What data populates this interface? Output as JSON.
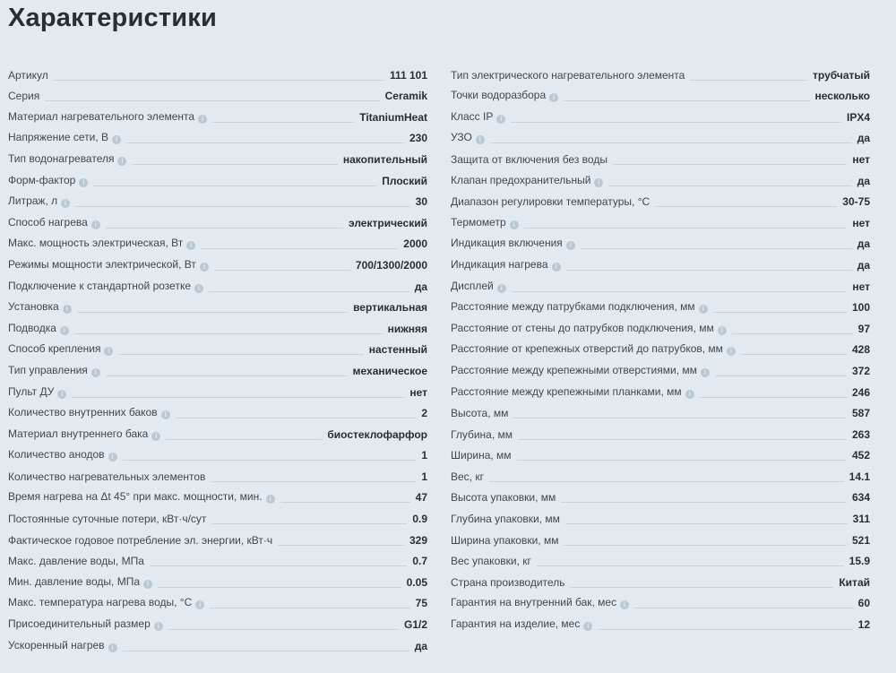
{
  "title": "Характеристики",
  "info_icon": "info-icon",
  "colors": {
    "background": "#e3eaef",
    "info_icon": "#b9c8d2"
  },
  "left": [
    {
      "label": "Артикул",
      "value": "111 101",
      "info": false
    },
    {
      "label": "Серия",
      "value": "Ceramik",
      "info": false
    },
    {
      "label": "Материал нагревательного элемента",
      "value": "TitaniumHeat",
      "info": true
    },
    {
      "label": "Напряжение сети, В",
      "value": "230",
      "info": true
    },
    {
      "label": "Тип водонагревателя",
      "value": "накопительный",
      "info": true
    },
    {
      "label": "Форм-фактор",
      "value": "Плоский",
      "info": true
    },
    {
      "label": "Литраж, л",
      "value": "30",
      "info": true
    },
    {
      "label": "Способ нагрева",
      "value": "электрический",
      "info": true
    },
    {
      "label": "Макс. мощность электрическая, Вт",
      "value": "2000",
      "info": true
    },
    {
      "label": "Режимы мощности электрической, Вт",
      "value": "700/1300/2000",
      "info": true
    },
    {
      "label": "Подключение к стандартной розетке",
      "value": "да",
      "info": true
    },
    {
      "label": "Установка",
      "value": "вертикальная",
      "info": true
    },
    {
      "label": "Подводка",
      "value": "нижняя",
      "info": true
    },
    {
      "label": "Способ крепления",
      "value": "настенный",
      "info": true
    },
    {
      "label": "Тип управления",
      "value": "механическое",
      "info": true
    },
    {
      "label": "Пульт ДУ",
      "value": "нет",
      "info": true
    },
    {
      "label": "Количество внутренних баков",
      "value": "2",
      "info": true
    },
    {
      "label": "Материал внутреннего бака",
      "value": "биостеклофарфор",
      "info": true
    },
    {
      "label": "Количество анодов",
      "value": "1",
      "info": true
    },
    {
      "label": "Количество нагревательных элементов",
      "value": "1",
      "info": false
    },
    {
      "label": "Время нагрева на Δt 45° при макс. мощности, мин.",
      "value": "47",
      "info": true
    },
    {
      "label": "Постоянные суточные потери, кВт·ч/сут",
      "value": "0.9",
      "info": false
    },
    {
      "label": "Фактическое годовое потребление эл. энергии, кВт·ч",
      "value": "329",
      "info": false
    },
    {
      "label": "Макс. давление воды, МПа",
      "value": "0.7",
      "info": false
    },
    {
      "label": "Мин. давление воды, МПа",
      "value": "0.05",
      "info": true
    },
    {
      "label": "Макс. температура нагрева воды, °С",
      "value": "75",
      "info": true
    },
    {
      "label": "Присоединительный размер",
      "value": "G1/2",
      "info": true
    },
    {
      "label": "Ускоренный нагрев",
      "value": "да",
      "info": true
    }
  ],
  "right": [
    {
      "label": "Тип электрического нагревательного элемента",
      "value": "трубчатый",
      "info": false
    },
    {
      "label": "Точки водоразбора",
      "value": "несколько",
      "info": true
    },
    {
      "label": "Класс IP",
      "value": "IPX4",
      "info": true
    },
    {
      "label": "УЗО",
      "value": "да",
      "info": true
    },
    {
      "label": "Защита от включения без воды",
      "value": "нет",
      "info": false
    },
    {
      "label": "Клапан предохранительный",
      "value": "да",
      "info": true
    },
    {
      "label": "Диапазон регулировки температуры, °С",
      "value": "30-75",
      "info": false
    },
    {
      "label": "Термометр",
      "value": "нет",
      "info": true
    },
    {
      "label": "Индикация включения",
      "value": "да",
      "info": true
    },
    {
      "label": "Индикация нагрева",
      "value": "да",
      "info": true
    },
    {
      "label": "Дисплей",
      "value": "нет",
      "info": true
    },
    {
      "label": "Расстояние между патрубками подключения, мм",
      "value": "100",
      "info": true
    },
    {
      "label": "Расстояние от стены до патрубков подключения, мм",
      "value": "97",
      "info": true
    },
    {
      "label": "Расстояние от крепежных отверстий до патрубков, мм",
      "value": "428",
      "info": true
    },
    {
      "label": "Расстояние между крепежными отверстиями, мм",
      "value": "372",
      "info": true
    },
    {
      "label": "Расстояние между крепежными планками, мм",
      "value": "246",
      "info": true
    },
    {
      "label": "Высота, мм",
      "value": "587",
      "info": false
    },
    {
      "label": "Глубина, мм",
      "value": "263",
      "info": false
    },
    {
      "label": "Ширина, мм",
      "value": "452",
      "info": false
    },
    {
      "label": "Вес, кг",
      "value": "14.1",
      "info": false
    },
    {
      "label": "Высота упаковки, мм",
      "value": "634",
      "info": false
    },
    {
      "label": "Глубина упаковки, мм",
      "value": "311",
      "info": false
    },
    {
      "label": "Ширина упаковки, мм",
      "value": "521",
      "info": false
    },
    {
      "label": "Вес упаковки, кг",
      "value": "15.9",
      "info": false
    },
    {
      "label": "Страна производитель",
      "value": "Китай",
      "info": false
    },
    {
      "label": "Гарантия на внутренний бак, мес",
      "value": "60",
      "info": true
    },
    {
      "label": "Гарантия на изделие, мес",
      "value": "12",
      "info": true
    }
  ]
}
